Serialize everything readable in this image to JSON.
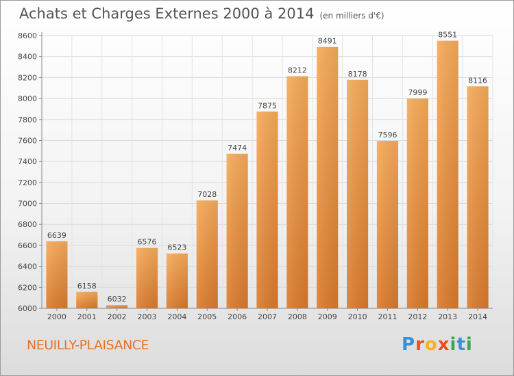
{
  "title": "Achats et Charges Externes 2000 à 2014",
  "subtitle": "(en milliers d'€)",
  "location": "NEUILLY-PLAISANCE",
  "brand": {
    "letters": [
      "P",
      "r",
      "o",
      "x",
      "i",
      "t",
      "i"
    ],
    "colors": [
      "#3b8ed8",
      "#e8501e",
      "#f4b320",
      "#e8501e",
      "#3aa650",
      "#3b8ed8",
      "#3aa650"
    ]
  },
  "colors": {
    "bar": "#f0a04b",
    "bar_dark": "#d9792c",
    "text": "#555555",
    "accent": "#e2742c"
  },
  "chart_data": {
    "type": "bar",
    "title": "Achats et Charges Externes 2000 à 2014",
    "subtitle": "(en milliers d'€)",
    "categories": [
      "2000",
      "2001",
      "2002",
      "2003",
      "2004",
      "2005",
      "2006",
      "2007",
      "2008",
      "2009",
      "2010",
      "2011",
      "2012",
      "2013",
      "2014"
    ],
    "values": [
      6639,
      6158,
      6032,
      6576,
      6523,
      7028,
      7474,
      7875,
      8212,
      8491,
      8178,
      7596,
      7999,
      8551,
      8116
    ],
    "ylim": [
      6000,
      8600
    ],
    "yticks": [
      6000,
      6200,
      6400,
      6600,
      6800,
      7000,
      7200,
      7400,
      7600,
      7800,
      8000,
      8200,
      8400,
      8600
    ],
    "grid": true,
    "data_labels": true
  }
}
